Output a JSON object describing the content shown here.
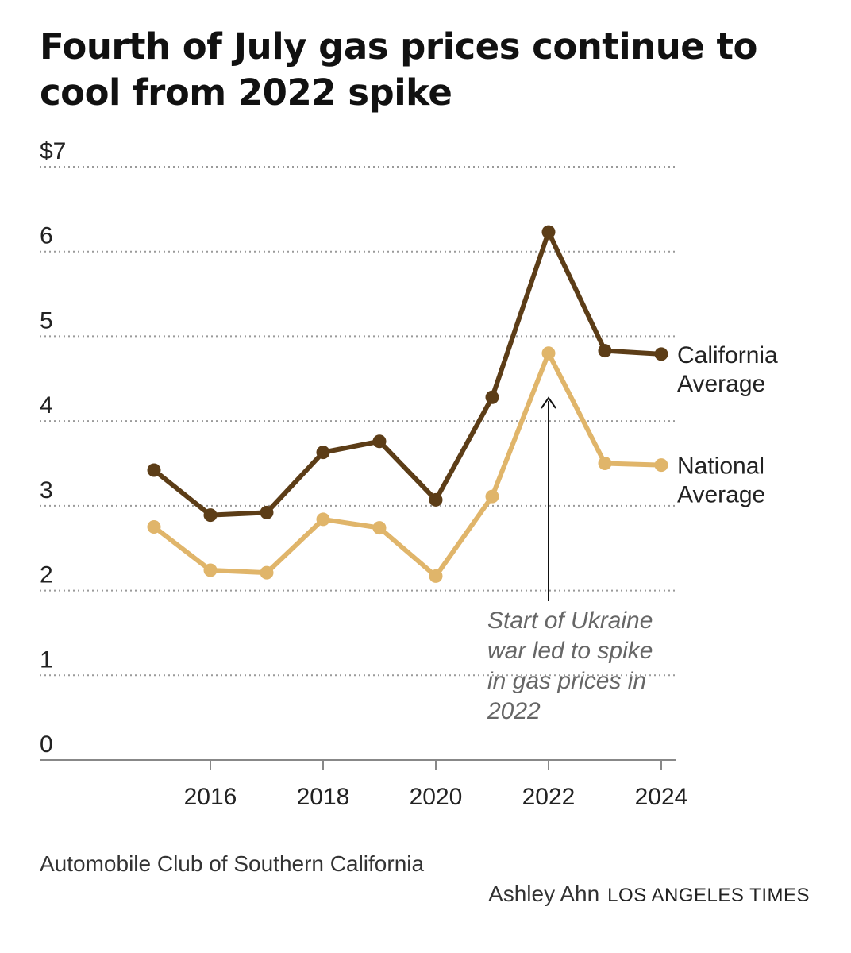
{
  "chart_data": {
    "type": "line",
    "title": "Fourth of July gas prices continue to cool from 2022 spike",
    "x": [
      2015,
      2016,
      2017,
      2018,
      2019,
      2020,
      2021,
      2022,
      2023,
      2024
    ],
    "series": [
      {
        "name": "California Average",
        "label_lines": [
          "California",
          "Average"
        ],
        "color": "#5c3d17",
        "values": [
          3.42,
          2.89,
          2.92,
          3.63,
          3.76,
          3.07,
          4.28,
          6.23,
          4.83,
          4.79
        ]
      },
      {
        "name": "National Average",
        "label_lines": [
          "National",
          "Average"
        ],
        "color": "#e0b56a",
        "values": [
          2.75,
          2.24,
          2.21,
          2.84,
          2.74,
          2.17,
          3.11,
          4.8,
          3.5,
          3.48
        ]
      }
    ],
    "ylim": [
      0,
      7
    ],
    "yticks": [
      0,
      1,
      2,
      3,
      4,
      5,
      6,
      7
    ],
    "ytick_labels": [
      "0",
      "1",
      "2",
      "3",
      "4",
      "5",
      "6",
      "$7"
    ],
    "xticks": [
      2016,
      2018,
      2020,
      2022,
      2024
    ],
    "xtick_labels": [
      "2016",
      "2018",
      "2020",
      "2022",
      "2024"
    ],
    "xlabel": "",
    "ylabel": "",
    "grid": true,
    "annotation": {
      "x": 2022,
      "lines": [
        "Start of Ukraine",
        "war led to spike",
        "in gas prices in",
        "2022"
      ]
    }
  },
  "source": "Automobile Club of Southern California",
  "credit": {
    "author": "Ashley Ahn",
    "publication": "LOS ANGELES TIMES"
  }
}
